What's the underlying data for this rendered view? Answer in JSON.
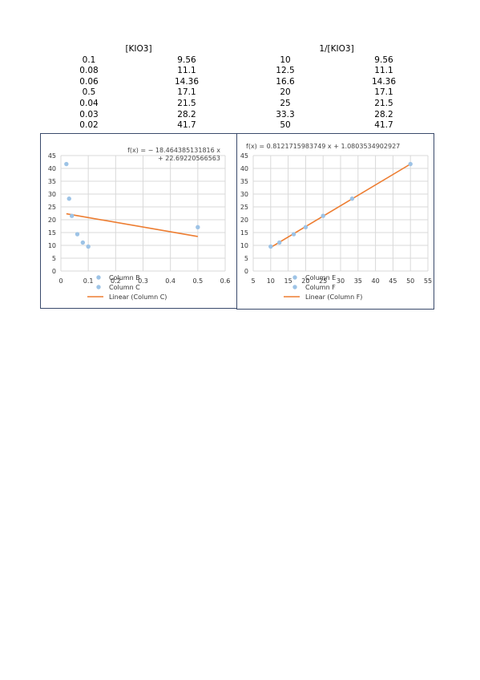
{
  "table": {
    "header_left": "[KIO3]",
    "header_right": "1/[KIO3]",
    "rows": [
      [
        "0.1",
        "9.56",
        "10",
        "9.56"
      ],
      [
        "0.08",
        "11.1",
        "12.5",
        "11.1"
      ],
      [
        "0.06",
        "14.36",
        "16.6",
        "14.36"
      ],
      [
        "0.5",
        "17.1",
        "20",
        "17.1"
      ],
      [
        "0.04",
        "21.5",
        "25",
        "21.5"
      ],
      [
        "0.03",
        "28.2",
        "33.3",
        "28.2"
      ],
      [
        "0.02",
        "41.7",
        "50",
        "41.7"
      ]
    ]
  },
  "colors": {
    "points": "#9dc3e6",
    "trendline": "#ed7d31",
    "grid": "#d9d9d9",
    "border": "#3a4a6b"
  },
  "chart_data": [
    {
      "type": "scatter",
      "equation": [
        "f(x) = − 18.464385131816 x",
        "+ 22.69220566563"
      ],
      "x": [
        0.1,
        0.08,
        0.06,
        0.5,
        0.04,
        0.03,
        0.02
      ],
      "y": [
        9.56,
        11.1,
        14.36,
        17.1,
        21.5,
        28.2,
        41.7
      ],
      "trendline": {
        "slope": -18.464385131816,
        "intercept": 22.69220566563,
        "x_range": [
          0.02,
          0.5
        ]
      },
      "xlim": [
        0,
        0.6
      ],
      "ylim": [
        0,
        45
      ],
      "xticks": [
        "0",
        "0.1",
        "0.2",
        "0.3",
        "0.4",
        "0.5",
        "0.6"
      ],
      "yticks": [
        "0",
        "5",
        "10",
        "15",
        "20",
        "25",
        "30",
        "35",
        "40",
        "45"
      ],
      "legend": [
        "Column B",
        "Column C",
        "Linear (Column C)"
      ],
      "legend_position": "bottom",
      "grid": true
    },
    {
      "type": "scatter",
      "equation": [
        "f(x) = 0.8121715983749 x + 1.0803534902927"
      ],
      "x": [
        10,
        12.5,
        16.6,
        20,
        25,
        33.3,
        50
      ],
      "y": [
        9.56,
        11.1,
        14.36,
        17.1,
        21.5,
        28.2,
        41.7
      ],
      "trendline": {
        "slope": 0.8121715983749,
        "intercept": 1.0803534902927,
        "x_range": [
          10,
          50
        ]
      },
      "xlim": [
        5,
        55
      ],
      "ylim": [
        0,
        45
      ],
      "xticks": [
        "5",
        "10",
        "15",
        "20",
        "25",
        "30",
        "35",
        "40",
        "45",
        "50",
        "55"
      ],
      "yticks": [
        "0",
        "5",
        "10",
        "15",
        "20",
        "25",
        "30",
        "35",
        "40",
        "45"
      ],
      "legend": [
        "Column E",
        "Column F",
        "Linear (Column F)"
      ],
      "legend_position": "bottom",
      "grid": true
    }
  ]
}
